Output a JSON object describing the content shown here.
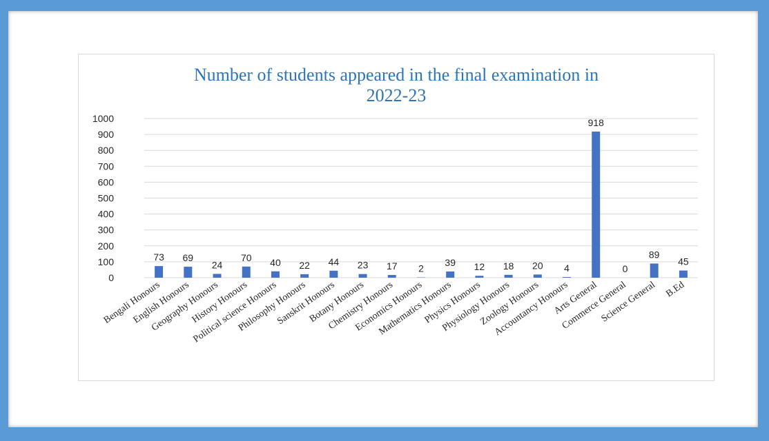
{
  "chart_data": {
    "type": "bar",
    "title_lines": [
      "Number of students appeared in the final examination in",
      "2022-23"
    ],
    "categories": [
      "Bengali Honours",
      "English Honours",
      "Geography Honours",
      "History Honours",
      "Political science Honours",
      "Philosophy Honours",
      "Sanskrit Honours",
      "Botany Honours",
      "Chemistry Honours",
      "Economics Honours",
      "Mathematics Honours",
      "Physics Honours",
      "Physiology Honours",
      "Zoology Honours",
      "Accountancy Honours",
      "Arts General",
      "Commerce General",
      "Science General",
      "B.Ed"
    ],
    "values": [
      73,
      69,
      24,
      70,
      40,
      22,
      44,
      23,
      17,
      2,
      39,
      12,
      18,
      20,
      4,
      918,
      0,
      89,
      45
    ],
    "ylim": [
      0,
      1000
    ],
    "yticks": [
      0,
      100,
      200,
      300,
      400,
      500,
      600,
      700,
      800,
      900,
      1000
    ],
    "grid": true,
    "legend": "none",
    "colors": {
      "bar": "#4472c4",
      "title": "#2e75b6",
      "grid": "#d9d9d9",
      "frame": "#5b9bd5"
    }
  }
}
